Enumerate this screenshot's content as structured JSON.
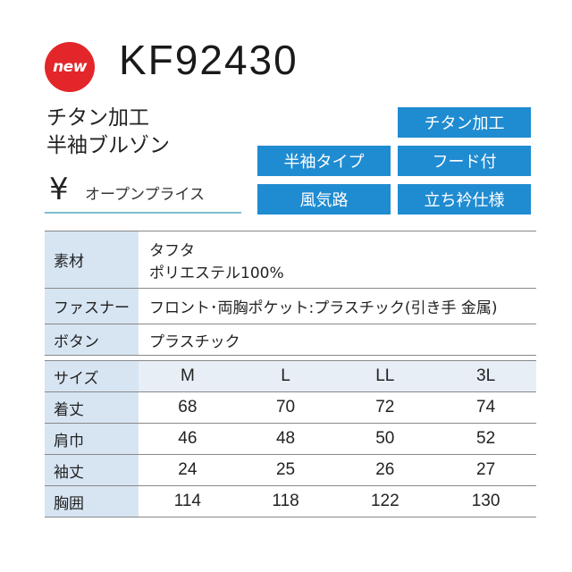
{
  "badge": "new",
  "model": "KF92430",
  "subtitle": [
    "チタン加工",
    "半袖ブルゾン"
  ],
  "price": {
    "symbol": "¥",
    "text": "オープンプライス"
  },
  "tags": [
    "チタン加工",
    "半袖タイプ",
    "フード付",
    "風気路",
    "立ち衿仕様"
  ],
  "spec": [
    {
      "label": "素材",
      "lines": [
        "タフタ",
        "ポリエステル100%"
      ]
    },
    {
      "label": "ファスナー",
      "lines": [
        "フロント･両胸ポケット:プラスチック(引き手 金属)"
      ]
    },
    {
      "label": "ボタン",
      "lines": [
        "プラスチック"
      ]
    }
  ],
  "size_table": {
    "header": [
      "サイズ",
      "M",
      "L",
      "LL",
      "3L"
    ],
    "rows": [
      [
        "着丈",
        "68",
        "70",
        "72",
        "74"
      ],
      [
        "肩巾",
        "46",
        "48",
        "50",
        "52"
      ],
      [
        "袖丈",
        "24",
        "25",
        "26",
        "27"
      ],
      [
        "胸囲",
        "114",
        "118",
        "122",
        "130"
      ]
    ]
  },
  "colors": {
    "accent": "#1f8bd1",
    "badge": "#e3262a",
    "label_bg": "#d7e5f3"
  }
}
